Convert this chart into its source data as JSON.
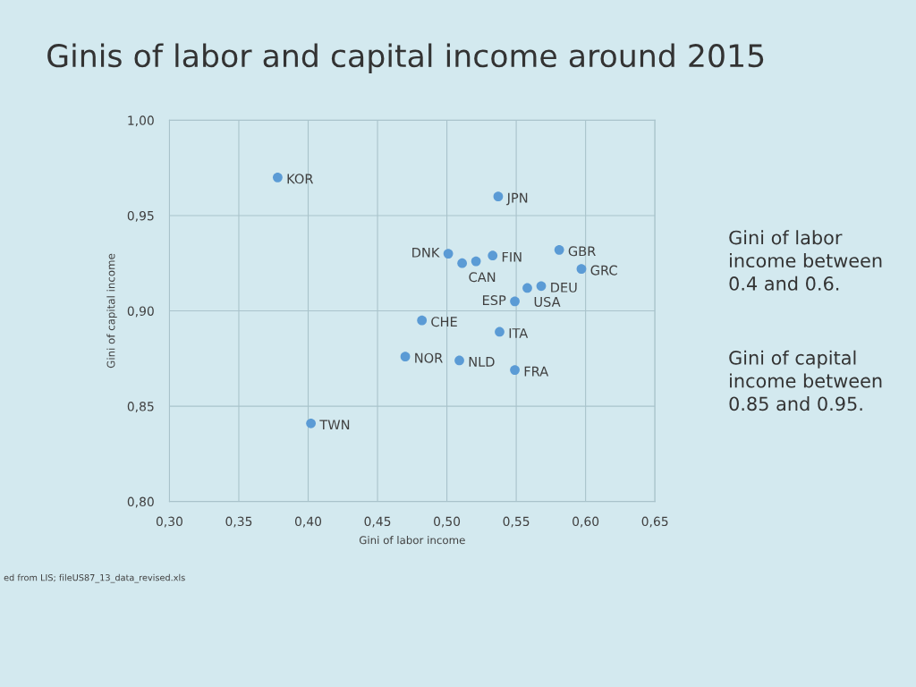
{
  "chart_data": {
    "type": "scatter",
    "title": "Ginis of labor and capital income around 2015",
    "xlabel": "Gini of labor income",
    "ylabel": "Gini of capital income",
    "series": [
      {
        "color": "#5b9bd5",
        "x": [
          0.378,
          0.537,
          0.501,
          0.511,
          0.521,
          0.533,
          0.581,
          0.597,
          0.558,
          0.568,
          0.549,
          0.482,
          0.538,
          0.47,
          0.509,
          0.549,
          0.402
        ],
        "values": [
          0.97,
          0.96,
          0.93,
          0.925,
          0.926,
          0.929,
          0.932,
          0.922,
          0.912,
          0.913,
          0.905,
          0.895,
          0.889,
          0.876,
          0.874,
          0.869,
          0.841
        ]
      }
    ],
    "marker": "circle",
    "xlim": [
      0.3,
      0.65
    ],
    "ylim": [
      0.8,
      1.0
    ],
    "xticks": [
      {
        "value": 0.3,
        "label": "0,30"
      },
      {
        "value": 0.35,
        "label": "0,35"
      },
      {
        "value": 0.4,
        "label": "0,40"
      },
      {
        "value": 0.45,
        "label": "0,45"
      },
      {
        "value": 0.5,
        "label": "0,50"
      },
      {
        "value": 0.55,
        "label": "0,55"
      },
      {
        "value": 0.6,
        "label": "0,60"
      },
      {
        "value": 0.65,
        "label": "0,65"
      }
    ],
    "yticks": [
      {
        "value": 0.8,
        "label": "0,80"
      },
      {
        "value": 0.85,
        "label": "0,85"
      },
      {
        "value": 0.9,
        "label": "0,90"
      },
      {
        "value": 0.95,
        "label": "0,95"
      },
      {
        "value": 1.0,
        "label": "1,00"
      }
    ],
    "grid": true,
    "annotations": [
      {
        "text": "KOR",
        "x": 0.378,
        "y": 0.97
      },
      {
        "text": "JPN",
        "x": 0.537,
        "y": 0.96
      },
      {
        "text": "DNK",
        "x": 0.501,
        "y": 0.93
      },
      {
        "text": "CAN",
        "x": 0.511,
        "y": 0.925
      },
      {
        "text": "FIN",
        "x": 0.533,
        "y": 0.929
      },
      {
        "text": "GBR",
        "x": 0.581,
        "y": 0.932
      },
      {
        "text": "GRC",
        "x": 0.597,
        "y": 0.922
      },
      {
        "text": "USA",
        "x": 0.558,
        "y": 0.912
      },
      {
        "text": "DEU",
        "x": 0.568,
        "y": 0.913
      },
      {
        "text": "ESP",
        "x": 0.549,
        "y": 0.905
      },
      {
        "text": "CHE",
        "x": 0.482,
        "y": 0.895
      },
      {
        "text": "ITA",
        "x": 0.538,
        "y": 0.889
      },
      {
        "text": "NOR",
        "x": 0.47,
        "y": 0.876
      },
      {
        "text": "NLD",
        "x": 0.509,
        "y": 0.874
      },
      {
        "text": "FRA",
        "x": 0.549,
        "y": 0.869
      },
      {
        "text": "TWN",
        "x": 0.402,
        "y": 0.841
      },
      "Gini of labor income between 0.4 and 0.6.",
      "Gini of capital income between 0.85 and 0.95.",
      "ed from LIS; fileUS87_13_data_revised.xls"
    ]
  }
}
